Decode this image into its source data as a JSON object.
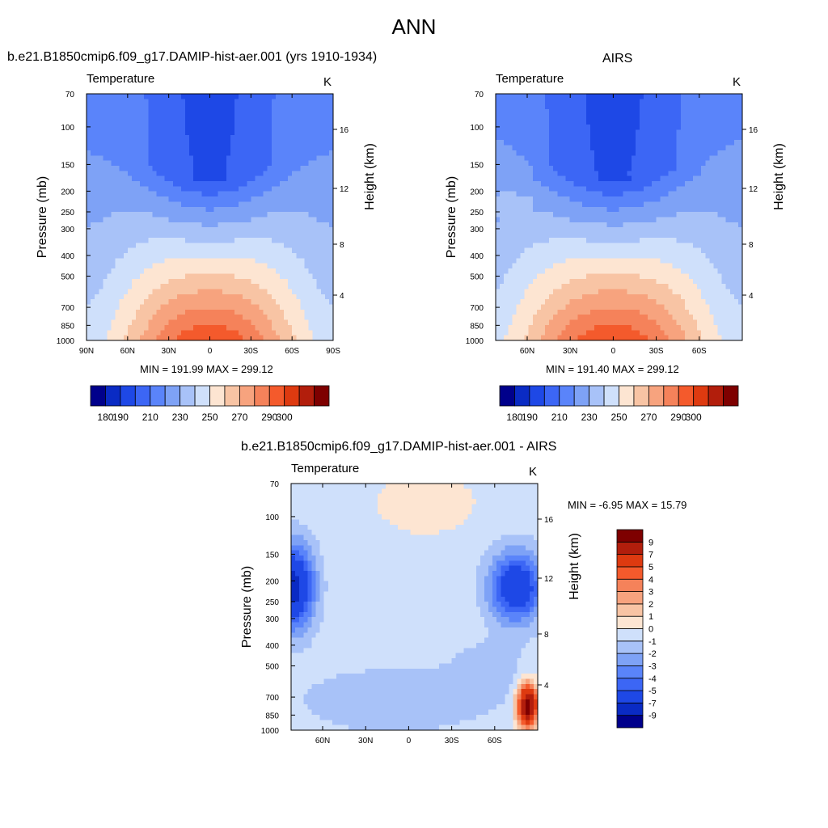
{
  "figure": {
    "title": "ANN"
  },
  "chart_data": [
    {
      "type": "contour",
      "panel_title": "b.e21.B1850cmip6.f09_g17.DAMIP-hist-aer.001 (yrs 1910-1934)",
      "left_label": "Temperature",
      "units": "K",
      "ylabel": "Pressure (mb)",
      "ylabel_right": "Height (km)",
      "xticks": [
        "90N",
        "60N",
        "30N",
        "0",
        "30S",
        "60S",
        "90S"
      ],
      "yticks": [
        "70",
        "100",
        "150",
        "200",
        "250",
        "300",
        "400",
        "500",
        "700",
        "850",
        "1000"
      ],
      "yticks_right": [
        "16",
        "12",
        "8",
        "4"
      ],
      "stats": "MIN = 191.99  MAX = 299.12",
      "colorbar": {
        "levels": [
          180,
          190,
          200,
          210,
          220,
          230,
          240,
          250,
          260,
          270,
          280,
          290,
          300
        ],
        "labels": [
          "180",
          "190",
          "210",
          "230",
          "250",
          "270",
          "290",
          "300"
        ],
        "colors": [
          "#00008b",
          "#0a2bc4",
          "#1e48e6",
          "#3c66f5",
          "#5a84fa",
          "#7ea2f6",
          "#a8c2f8",
          "#cfe0fb",
          "#fde5d2",
          "#f8c4a4",
          "#f7a37e",
          "#f5825a",
          "#f45a2c",
          "#de3a10",
          "#b21e0c",
          "#7e0000"
        ]
      }
    },
    {
      "type": "contour",
      "panel_title": "AIRS",
      "left_label": "Temperature",
      "units": "K",
      "ylabel": "Pressure (mb)",
      "ylabel_right": "Height (km)",
      "xticks": [
        "60N",
        "30N",
        "0",
        "30S",
        "60S"
      ],
      "yticks": [
        "70",
        "100",
        "150",
        "200",
        "250",
        "300",
        "400",
        "500",
        "700",
        "850",
        "1000"
      ],
      "yticks_right": [
        "16",
        "12",
        "8",
        "4"
      ],
      "stats": "MIN = 191.40  MAX = 299.12",
      "colorbar": {
        "levels": [
          180,
          190,
          200,
          210,
          220,
          230,
          240,
          250,
          260,
          270,
          280,
          290,
          300
        ],
        "labels": [
          "180",
          "190",
          "210",
          "230",
          "250",
          "270",
          "290",
          "300"
        ],
        "colors": [
          "#00008b",
          "#0a2bc4",
          "#1e48e6",
          "#3c66f5",
          "#5a84fa",
          "#7ea2f6",
          "#a8c2f8",
          "#cfe0fb",
          "#fde5d2",
          "#f8c4a4",
          "#f7a37e",
          "#f5825a",
          "#f45a2c",
          "#de3a10",
          "#b21e0c",
          "#7e0000"
        ]
      }
    },
    {
      "type": "contour",
      "panel_title": "b.e21.B1850cmip6.f09_g17.DAMIP-hist-aer.001 - AIRS",
      "left_label": "Temperature",
      "units": "K",
      "ylabel": "Pressure (mb)",
      "ylabel_right": "Height (km)",
      "xticks": [
        "60N",
        "30N",
        "0",
        "30S",
        "60S"
      ],
      "yticks": [
        "70",
        "100",
        "150",
        "200",
        "250",
        "300",
        "400",
        "500",
        "700",
        "850",
        "1000"
      ],
      "yticks_right": [
        "16",
        "12",
        "8",
        "4"
      ],
      "stats": "MIN =  -6.95  MAX =  15.79",
      "colorbar": {
        "levels": [
          -9,
          -7,
          -5,
          -4,
          -3,
          -2,
          -1,
          0,
          1,
          2,
          3,
          4,
          5,
          7,
          9
        ],
        "labels": [
          "-9",
          "-7",
          "-5",
          "-4",
          "-3",
          "-2",
          "-1",
          "0",
          "1",
          "2",
          "3",
          "4",
          "5",
          "7",
          "9"
        ],
        "colors": [
          "#00008b",
          "#0a2bc4",
          "#1e48e6",
          "#3c66f5",
          "#5a84fa",
          "#7ea2f6",
          "#a8c2f8",
          "#cfe0fb",
          "#fde5d2",
          "#f8c4a4",
          "#f7a37e",
          "#f5825a",
          "#f45a2c",
          "#de3a10",
          "#b21e0c",
          "#7e0000"
        ]
      }
    }
  ]
}
